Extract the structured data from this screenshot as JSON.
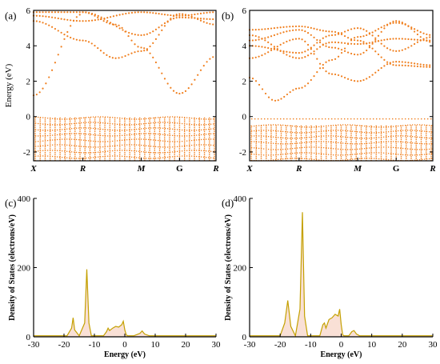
{
  "chart_data": [
    {
      "type": "scatter",
      "panel_label": "(a)",
      "ylabel": "Energy (eV)",
      "ylim": [
        -2.5,
        6
      ],
      "yticks": [
        -2,
        0,
        2,
        4,
        6
      ],
      "kpath": [
        {
          "label": "X",
          "pos": 0,
          "italic": true
        },
        {
          "label": "R",
          "pos": 0.27,
          "italic": true
        },
        {
          "label": "M",
          "pos": 0.59,
          "italic": true
        },
        {
          "label": "G",
          "pos": 0.8,
          "italic": false
        },
        {
          "label": "R",
          "pos": 1,
          "italic": true
        }
      ],
      "bands": [
        {
          "pts": [
            [
              0,
              1.2
            ],
            [
              0.27,
              5.8
            ]
          ]
        },
        {
          "pts": [
            [
              0,
              5.4
            ],
            [
              0.27,
              4.3
            ],
            [
              0.45,
              3.3
            ],
            [
              0.59,
              3.7
            ],
            [
              0.8,
              5.8
            ],
            [
              1,
              5.2
            ]
          ]
        },
        {
          "pts": [
            [
              0.27,
              5.9
            ],
            [
              0.45,
              5.2
            ],
            [
              0.59,
              3.9
            ],
            [
              0.8,
              1.3
            ],
            [
              1,
              3.4
            ]
          ]
        },
        {
          "pts": [
            [
              0,
              5.7
            ],
            [
              0.27,
              5.4
            ],
            [
              0.59,
              5.9
            ],
            [
              0.8,
              5.7
            ],
            [
              1,
              5.9
            ]
          ]
        },
        {
          "pts": [
            [
              0,
              5.9
            ],
            [
              0.27,
              5.9
            ],
            [
              0.59,
              4.6
            ],
            [
              0.8,
              5.6
            ],
            [
              1,
              5.5
            ]
          ]
        }
      ],
      "valence_top": -0.05,
      "valence_bottom": -2.5
    },
    {
      "type": "scatter",
      "panel_label": "(b)",
      "ylabel": "",
      "ylim": [
        -2.5,
        6
      ],
      "yticks": [
        -2,
        0,
        2,
        4,
        6
      ],
      "kpath": [
        {
          "label": "X",
          "pos": 0,
          "italic": true
        },
        {
          "label": "R",
          "pos": 0.27,
          "italic": true
        },
        {
          "label": "M",
          "pos": 0.59,
          "italic": true
        },
        {
          "label": "G",
          "pos": 0.8,
          "italic": false
        },
        {
          "label": "R",
          "pos": 1,
          "italic": true
        }
      ],
      "bands": [
        {
          "pts": [
            [
              0,
              2.2
            ],
            [
              0.14,
              0.9
            ],
            [
              0.27,
              1.6
            ],
            [
              0.45,
              3.2
            ],
            [
              0.59,
              4.5
            ],
            [
              0.8,
              5.3
            ],
            [
              1,
              4.6
            ]
          ]
        },
        {
          "pts": [
            [
              0,
              3.3
            ],
            [
              0.27,
              4.4
            ],
            [
              0.45,
              2.4
            ],
            [
              0.59,
              2.0
            ],
            [
              0.8,
              3.1
            ],
            [
              1,
              2.9
            ]
          ]
        },
        {
          "pts": [
            [
              0,
              4.3
            ],
            [
              0.27,
              4.9
            ],
            [
              0.45,
              3.9
            ],
            [
              0.59,
              3.5
            ],
            [
              0.8,
              5.4
            ],
            [
              1,
              4.2
            ]
          ]
        },
        {
          "pts": [
            [
              0,
              4.0
            ],
            [
              0.27,
              3.6
            ],
            [
              0.45,
              4.6
            ],
            [
              0.59,
              5.0
            ],
            [
              0.8,
              3.7
            ],
            [
              1,
              4.5
            ]
          ]
        },
        {
          "pts": [
            [
              0,
              4.9
            ],
            [
              0.27,
              5.1
            ],
            [
              0.45,
              4.8
            ],
            [
              0.59,
              4.3
            ],
            [
              0.8,
              2.9
            ],
            [
              1,
              2.8
            ]
          ]
        },
        {
          "pts": [
            [
              0,
              4.6
            ],
            [
              0.27,
              3.3
            ],
            [
              0.45,
              4.2
            ],
            [
              0.59,
              4.1
            ],
            [
              0.8,
              4.4
            ],
            [
              1,
              4.3
            ]
          ]
        }
      ],
      "valence_top": -0.5,
      "valence_bottom": -2.5,
      "flat_level": -0.1
    },
    {
      "type": "line",
      "panel_label": "(c)",
      "xlabel": "Energy (eV)",
      "ylabel": "Density of States (electrons/eV)",
      "xlim": [
        -30,
        30
      ],
      "ylim": [
        0,
        400
      ],
      "xticks": [
        -30,
        -20,
        -10,
        0,
        10,
        20,
        30
      ],
      "yticks": [
        0,
        200,
        400
      ],
      "x": [
        -30,
        -19,
        -17.5,
        -17,
        -16.5,
        -15,
        -13.2,
        -12.5,
        -11.8,
        -11,
        -7,
        -6,
        -5.5,
        -5,
        -4,
        -3,
        -2,
        -1,
        -0.5,
        0,
        0.5,
        1,
        3,
        5,
        5.7,
        6.5,
        8,
        30
      ],
      "y": [
        3,
        3,
        25,
        55,
        20,
        3,
        40,
        195,
        40,
        3,
        3,
        15,
        25,
        18,
        25,
        30,
        28,
        35,
        45,
        20,
        5,
        3,
        3,
        10,
        17,
        8,
        3,
        3
      ]
    },
    {
      "type": "line",
      "panel_label": "(d)",
      "xlabel": "Energy (eV)",
      "ylabel": "Density of States (electrons/eV)",
      "xlim": [
        -30,
        30
      ],
      "ylim": [
        0,
        400
      ],
      "xticks": [
        -30,
        -20,
        -10,
        0,
        10,
        20,
        30
      ],
      "yticks": [
        0,
        200,
        400
      ],
      "x": [
        -30,
        -20,
        -18.5,
        -17.5,
        -16.5,
        -15,
        -13.5,
        -12.7,
        -12,
        -11,
        -7,
        -6,
        -5.5,
        -5,
        -4,
        -3,
        -2,
        -1,
        -0.5,
        0,
        0.5,
        1,
        2.5,
        3.5,
        4.2,
        5,
        6,
        30
      ],
      "y": [
        3,
        3,
        40,
        105,
        30,
        3,
        80,
        360,
        60,
        3,
        3,
        35,
        40,
        25,
        50,
        55,
        65,
        60,
        80,
        35,
        5,
        3,
        3,
        15,
        18,
        8,
        3,
        3
      ]
    }
  ]
}
